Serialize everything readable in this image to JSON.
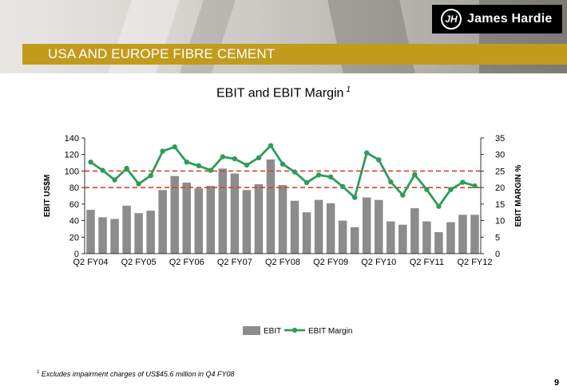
{
  "logo": {
    "mark": "JH",
    "brand": "James Hardie"
  },
  "section_title": "USA AND EUROPE FIBRE CEMENT",
  "footnote": {
    "marker": "1",
    "text": "Excludes impairment charges of US$45.6 million in Q4 FY08"
  },
  "page_number": "9",
  "colors": {
    "bar": "#8c8c8c",
    "line": "#2e9c5a",
    "ref_line": "#e03c31",
    "gold": "#c29b1d"
  },
  "chart_data": {
    "type": "bar+line",
    "title": "EBIT and EBIT Margin",
    "title_footnote_marker": "1",
    "ylabel": "EBIT US$M",
    "y2label": "EBIT MARGIN %",
    "ylim": [
      0,
      140
    ],
    "y2lim": [
      0,
      35
    ],
    "yticks": [
      "0",
      "20",
      "40",
      "60",
      "80",
      "100",
      "120",
      "140"
    ],
    "y2ticks": [
      "0",
      "5",
      "10",
      "15",
      "20",
      "25",
      "30",
      "35"
    ],
    "xtick_labels": [
      "Q2 FY04",
      "Q2 FY05",
      "Q2 FY06",
      "Q2 FY07",
      "Q2 FY08",
      "Q2 FY09",
      "Q2 FY10",
      "Q2 FY11",
      "Q2 FY12"
    ],
    "series": [
      {
        "name": "EBIT",
        "kind": "bar",
        "values": [
          53,
          44,
          42,
          58,
          49,
          52,
          77,
          94,
          86,
          79,
          82,
          103,
          97,
          77,
          84,
          114,
          83,
          64,
          50,
          65,
          61,
          40,
          32,
          68,
          65,
          39,
          35,
          55,
          39,
          26,
          38,
          47,
          47
        ]
      },
      {
        "name": "EBIT Margin",
        "kind": "line",
        "axis": "right",
        "values": [
          27.7,
          25.2,
          22.3,
          25.8,
          21.1,
          23.6,
          31.0,
          32.3,
          27.7,
          26.6,
          25.2,
          29.3,
          28.7,
          26.8,
          29.0,
          32.7,
          27.1,
          24.7,
          21.5,
          23.8,
          23.2,
          20.3,
          17.0,
          30.5,
          28.4,
          21.7,
          17.7,
          23.9,
          19.4,
          14.3,
          19.4,
          21.6,
          20.5
        ]
      }
    ],
    "ref_lines_right_axis": [
      25,
      20
    ],
    "legend": [
      "EBIT",
      "EBIT Margin"
    ],
    "legend_position": "bottom"
  }
}
